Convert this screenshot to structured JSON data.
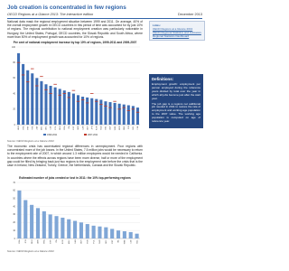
{
  "header": {
    "title": "Job creation is concentrated in few regions",
    "subtitle": "OECD Regions at a Glance 2013: The interactive edition",
    "date": "December 2013"
  },
  "body": {
    "paragraphs": [
      "National data mask the regional employment situation between 1999 and 2011. On average, 40% of the overall employment growth in OECD countries in this period of time was accounted for by just 10% of regions. The regional contribution to national employment creation was particularly noticeable in Hungary, the United States, Portugal, OECD countries, the Slovak Republic and South Africa, where more than 50% of employment growth was accounted for 10% of regions.",
      "The economic crisis has accentuated regional differences in unemployment. Poor regions with concentrated more of the job losses. In the United States, 7.5 million jobs would be necessary to return to the employment rate of 2007, in which around 1.3 million employees would be needed in California. In countries where the effects across regions have been more diverse, half or more of the employment gap could be filled by bringing back just two regions to the employment rate before the crisis that is the case in Ireland, New Zealand, Turkey, Greece, the Netherlands, Canada and the Slovak Republic."
    ]
  },
  "sidebar": {
    "links_title": "Links:",
    "links": [
      "OECD Regions at a Glance 2013",
      "OECD Regional Statistics and Indicators",
      "Regional Statistics Dashboard"
    ],
    "definitions_title": "Definitions:",
    "definitions": [
      "Employment growth: employment per person employed during the reference years divided by total over the year in which all jobs become just after the start year.",
      "The job gap is a regions net additional job needed in 2011 to restore the rate of employment and working age population to the 2007 value. The working age population is computed on age of reference year."
    ]
  },
  "charts": [
    {
      "type": "bar",
      "title": "Per cent of national employment increase by top 10% of regions, 1999-2011 and 2009-2007",
      "categories": [
        "HUN",
        "USA",
        "PRT",
        "SVK",
        "ZAF",
        "MEX",
        "GRC",
        "CZE",
        "POL",
        "DEU",
        "FRA",
        "ITA",
        "ESP",
        "GBR",
        "CAN",
        "AUS",
        "JPN",
        "KOR",
        "NLD",
        "BEL",
        "AUT",
        "SWE",
        "NOR",
        "DNK",
        "FIN",
        "NZL",
        "CHL"
      ],
      "series": [
        {
          "name": "1999-2011",
          "color": "#3f6fb5",
          "mark": "bar",
          "values": [
            92,
            78,
            70,
            66,
            60,
            56,
            52,
            50,
            48,
            46,
            44,
            42,
            40,
            38,
            36,
            35,
            34,
            33,
            32,
            30,
            29,
            28,
            27,
            26,
            25,
            24,
            22
          ]
        },
        {
          "name": "2007-2011",
          "color": "#c0392b",
          "mark": "dash",
          "values": [
            80,
            64,
            55,
            72,
            50,
            62,
            45,
            40,
            52,
            38,
            40,
            35,
            44,
            30,
            32,
            28,
            40,
            30,
            26,
            24,
            22,
            30,
            20,
            22,
            18,
            20,
            16
          ]
        }
      ],
      "ylim": [
        0,
        100
      ],
      "yticks": [
        0,
        20,
        40,
        60,
        80,
        100
      ],
      "source": "Source: OECD Regions at a Glance 2013"
    },
    {
      "type": "bar",
      "title": "Estimated number of jobs created or lost in 2011: the 10% top-performing regions",
      "categories": [
        "USA",
        "JPN",
        "DEU",
        "GBR",
        "FRA",
        "ESP",
        "ITA",
        "KOR",
        "MEX",
        "CAN",
        "AUS",
        "TUR",
        "POL",
        "NLD",
        "GRC",
        "PRT",
        "IRL",
        "SWE",
        "CZE",
        "NZL"
      ],
      "values": [
        60,
        48,
        42,
        38,
        34,
        30,
        28,
        26,
        24,
        22,
        20,
        18,
        16,
        15,
        14,
        12,
        10,
        9,
        8,
        6
      ],
      "color": "#7fa6d6",
      "ylim": [
        0,
        70
      ],
      "yticks": [
        0,
        10,
        20,
        30,
        40,
        50,
        60,
        70
      ],
      "source": "Source: OECD Regions at a Glance 2013"
    }
  ]
}
